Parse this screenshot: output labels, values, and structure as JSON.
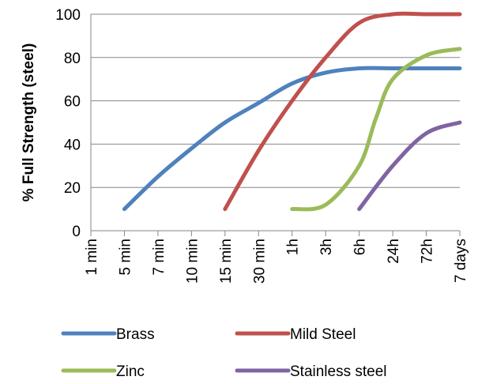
{
  "chart_data": {
    "type": "line",
    "title": "",
    "xlabel": "",
    "ylabel": "% Full Strength (steel)",
    "categories": [
      "1 min",
      "5 min",
      "7 min",
      "10 min",
      "15 min",
      "30 min",
      "1h",
      "3h",
      "6h",
      "24h",
      "72h",
      "7 days"
    ],
    "ylim": [
      0,
      100
    ],
    "yticks": [
      0,
      20,
      40,
      60,
      80,
      100
    ],
    "grid": true,
    "legend_position": "bottom",
    "series": [
      {
        "name": "Brass",
        "color": "#4F81BD",
        "x": [
          1,
          2,
          3,
          4,
          5,
          6,
          7,
          8,
          9,
          10,
          11
        ],
        "values": [
          10,
          25,
          38,
          50,
          59,
          68,
          73,
          75,
          75,
          75,
          75
        ]
      },
      {
        "name": "Mild Steel",
        "color": "#C0504D",
        "x": [
          4,
          5,
          6,
          7,
          8,
          9,
          10,
          11
        ],
        "values": [
          10,
          37,
          60,
          80,
          96,
          100,
          100,
          100
        ]
      },
      {
        "name": "Zinc",
        "color": "#9BBB59",
        "x": [
          6,
          7,
          8,
          8.5,
          9,
          10,
          11
        ],
        "values": [
          10,
          12,
          30,
          52,
          70,
          81,
          84
        ]
      },
      {
        "name": "Stainless steel",
        "color": "#8064A2",
        "x": [
          8,
          9,
          10,
          11
        ],
        "values": [
          10,
          30,
          45,
          50
        ]
      }
    ]
  }
}
